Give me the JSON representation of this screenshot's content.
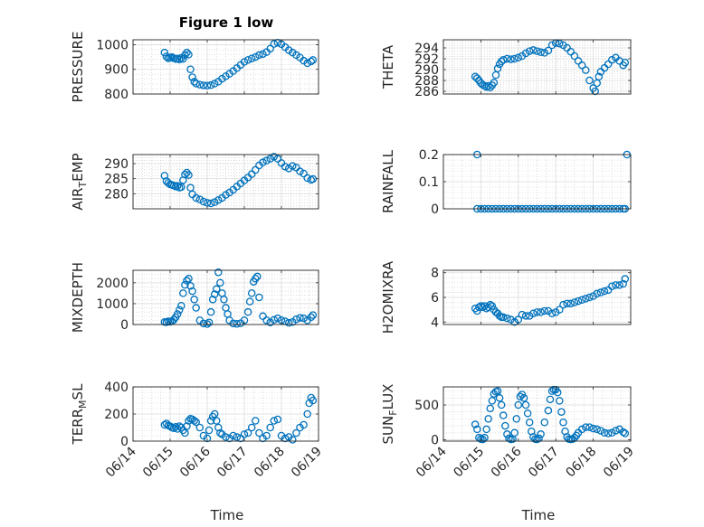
{
  "figure": {
    "title": "Figure 1 low",
    "xlabel": "Time",
    "x_ticks": [
      "06/14",
      "06/15",
      "06/16",
      "06/17",
      "06/18",
      "06/19"
    ],
    "marker_color": "#0072bd",
    "grid": "major and minor, dotted"
  },
  "chart_data": [
    {
      "type": "scatter",
      "ylabel": "PRESSURE",
      "xlim": [
        0,
        5
      ],
      "ylim": [
        800,
        1020
      ],
      "yticks": [
        800,
        900,
        1000
      ],
      "x": [
        0.85,
        0.9,
        0.95,
        1.0,
        1.05,
        1.1,
        1.15,
        1.2,
        1.25,
        1.3,
        1.35,
        1.4,
        1.45,
        1.5,
        1.55,
        1.6,
        1.65,
        1.7,
        1.8,
        1.9,
        2.0,
        2.1,
        2.2,
        2.3,
        2.4,
        2.5,
        2.6,
        2.7,
        2.8,
        2.9,
        3.0,
        3.1,
        3.2,
        3.3,
        3.4,
        3.5,
        3.6,
        3.7,
        3.8,
        3.9,
        4.0,
        4.1,
        4.2,
        4.3,
        4.4,
        4.5,
        4.6,
        4.7,
        4.8,
        4.85
      ],
      "y": [
        968,
        952,
        945,
        947,
        950,
        945,
        942,
        944,
        940,
        946,
        942,
        958,
        968,
        960,
        900,
        868,
        850,
        842,
        838,
        835,
        834,
        836,
        842,
        850,
        862,
        872,
        882,
        893,
        905,
        918,
        930,
        938,
        944,
        950,
        958,
        962,
        970,
        984,
        1003,
        1008,
        1002,
        990,
        978,
        968,
        958,
        948,
        935,
        925,
        932,
        938
      ]
    },
    {
      "type": "scatter",
      "ylabel": "THETA",
      "xlim": [
        0,
        5
      ],
      "ylim": [
        285.5,
        295.5
      ],
      "yticks": [
        286,
        288,
        290,
        292,
        294
      ],
      "x": [
        0.85,
        0.9,
        0.95,
        1.0,
        1.05,
        1.1,
        1.15,
        1.2,
        1.25,
        1.3,
        1.35,
        1.4,
        1.45,
        1.5,
        1.55,
        1.6,
        1.7,
        1.8,
        1.9,
        2.0,
        2.1,
        2.2,
        2.3,
        2.4,
        2.5,
        2.6,
        2.7,
        2.8,
        2.9,
        3.0,
        3.1,
        3.2,
        3.3,
        3.4,
        3.5,
        3.6,
        3.7,
        3.8,
        3.9,
        4.0,
        4.05,
        4.1,
        4.15,
        4.2,
        4.3,
        4.4,
        4.5,
        4.6,
        4.7,
        4.8,
        4.85
      ],
      "y": [
        288.7,
        288.4,
        288.0,
        287.5,
        287.2,
        287.0,
        286.8,
        287.0,
        286.7,
        287.1,
        287.6,
        289.0,
        290.2,
        291.0,
        291.5,
        291.8,
        292.0,
        291.9,
        292.0,
        292.2,
        292.5,
        293.0,
        293.4,
        293.6,
        293.4,
        293.2,
        293.1,
        293.5,
        294.5,
        294.9,
        294.8,
        294.5,
        294.0,
        293.3,
        292.5,
        291.6,
        290.8,
        289.9,
        288.0,
        286.6,
        286.0,
        287.5,
        288.7,
        289.6,
        290.3,
        291.0,
        291.8,
        292.2,
        291.6,
        290.8,
        291.3
      ]
    },
    {
      "type": "scatter",
      "ylabel": "AIR_TEMP",
      "xlim": [
        0,
        5
      ],
      "ylim": [
        275,
        293
      ],
      "yticks": [
        280,
        285,
        290
      ],
      "x": [
        0.85,
        0.9,
        0.95,
        1.0,
        1.05,
        1.1,
        1.15,
        1.2,
        1.25,
        1.3,
        1.35,
        1.4,
        1.45,
        1.5,
        1.55,
        1.6,
        1.7,
        1.8,
        1.9,
        2.0,
        2.1,
        2.2,
        2.3,
        2.4,
        2.5,
        2.6,
        2.7,
        2.8,
        2.9,
        3.0,
        3.1,
        3.2,
        3.3,
        3.4,
        3.5,
        3.6,
        3.7,
        3.8,
        3.9,
        4.0,
        4.1,
        4.2,
        4.3,
        4.4,
        4.5,
        4.6,
        4.7,
        4.8,
        4.85
      ],
      "y": [
        286.0,
        284.2,
        283.6,
        283.1,
        282.9,
        282.7,
        282.4,
        282.6,
        282.0,
        282.2,
        284.5,
        286.4,
        287.0,
        286.2,
        282.0,
        279.8,
        278.6,
        278.1,
        277.4,
        277.0,
        276.8,
        277.2,
        277.9,
        278.6,
        279.6,
        280.4,
        281.3,
        282.4,
        283.4,
        284.4,
        285.4,
        286.5,
        287.9,
        289.4,
        290.4,
        291.0,
        291.6,
        292.3,
        291.6,
        290.2,
        289.0,
        288.4,
        289.2,
        288.7,
        287.4,
        286.7,
        285.2,
        284.6,
        284.9
      ]
    },
    {
      "type": "scatter",
      "ylabel": "RAINFALL",
      "xlim": [
        0,
        5
      ],
      "ylim": [
        0,
        0.2
      ],
      "yticks": [
        0,
        0.1,
        0.2
      ],
      "x": [
        0.9,
        1.0,
        1.1,
        1.2,
        1.3,
        1.4,
        1.5,
        1.6,
        1.7,
        1.8,
        1.9,
        2.0,
        2.1,
        2.2,
        2.3,
        2.4,
        2.5,
        2.6,
        2.7,
        2.8,
        2.9,
        3.0,
        3.1,
        3.2,
        3.3,
        3.4,
        3.5,
        3.6,
        3.7,
        3.8,
        3.9,
        4.0,
        4.1,
        4.2,
        4.3,
        4.4,
        4.5,
        4.6,
        4.7,
        4.8,
        4.85,
        0.9,
        4.9
      ],
      "y": [
        0,
        0,
        0,
        0,
        0,
        0,
        0,
        0,
        0,
        0,
        0,
        0,
        0,
        0,
        0,
        0,
        0,
        0,
        0,
        0,
        0,
        0,
        0,
        0,
        0,
        0,
        0,
        0,
        0,
        0,
        0,
        0,
        0,
        0,
        0,
        0,
        0,
        0,
        0,
        0,
        0,
        0.2,
        0.2
      ]
    },
    {
      "type": "scatter",
      "ylabel": "MIXDEPTH",
      "xlim": [
        0,
        5
      ],
      "ylim": [
        0,
        2600
      ],
      "yticks": [
        0,
        1000,
        2000
      ],
      "x": [
        0.85,
        0.9,
        0.95,
        1.0,
        1.05,
        1.1,
        1.15,
        1.2,
        1.25,
        1.3,
        1.35,
        1.4,
        1.45,
        1.5,
        1.55,
        1.6,
        1.65,
        1.7,
        1.8,
        1.9,
        2.0,
        2.05,
        2.1,
        2.15,
        2.2,
        2.25,
        2.3,
        2.35,
        2.4,
        2.45,
        2.5,
        2.55,
        2.6,
        2.7,
        2.8,
        2.9,
        3.0,
        3.1,
        3.15,
        3.2,
        3.25,
        3.3,
        3.35,
        3.4,
        3.5,
        3.6,
        3.7,
        3.8,
        3.9,
        4.0,
        4.1,
        4.2,
        4.3,
        4.4,
        4.5,
        4.6,
        4.7,
        4.8,
        4.85
      ],
      "y": [
        120,
        110,
        150,
        130,
        160,
        230,
        350,
        500,
        700,
        900,
        1500,
        1900,
        2100,
        2200,
        1850,
        1600,
        1200,
        800,
        200,
        50,
        20,
        100,
        600,
        1200,
        1450,
        1700,
        2500,
        2000,
        1500,
        1200,
        800,
        500,
        200,
        50,
        30,
        60,
        200,
        600,
        1100,
        1500,
        2050,
        2200,
        2300,
        1300,
        400,
        200,
        100,
        220,
        300,
        200,
        150,
        80,
        120,
        250,
        320,
        300,
        200,
        350,
        450
      ]
    },
    {
      "type": "scatter",
      "ylabel": "H2OMIXRA",
      "xlim": [
        0,
        5
      ],
      "ylim": [
        3.8,
        8.2
      ],
      "yticks": [
        4,
        6,
        8
      ],
      "x": [
        0.85,
        0.9,
        0.95,
        1.0,
        1.05,
        1.1,
        1.15,
        1.2,
        1.25,
        1.3,
        1.35,
        1.4,
        1.45,
        1.5,
        1.55,
        1.6,
        1.7,
        1.8,
        1.9,
        2.0,
        2.1,
        2.2,
        2.3,
        2.4,
        2.5,
        2.6,
        2.7,
        2.8,
        2.9,
        3.0,
        3.1,
        3.2,
        3.3,
        3.4,
        3.5,
        3.6,
        3.7,
        3.8,
        3.9,
        4.0,
        4.1,
        4.2,
        4.3,
        4.4,
        4.5,
        4.6,
        4.7,
        4.8,
        4.85
      ],
      "y": [
        5.1,
        4.9,
        5.2,
        5.3,
        5.2,
        5.3,
        5.1,
        5.2,
        5.4,
        5.3,
        5.0,
        4.8,
        4.7,
        4.5,
        4.4,
        4.4,
        4.3,
        4.2,
        4.0,
        4.2,
        4.6,
        4.5,
        4.5,
        4.7,
        4.8,
        4.8,
        4.9,
        4.9,
        4.7,
        4.8,
        5.0,
        5.4,
        5.5,
        5.5,
        5.6,
        5.7,
        5.8,
        5.9,
        6.0,
        6.1,
        6.3,
        6.4,
        6.5,
        6.6,
        6.9,
        7.0,
        7.0,
        7.1,
        7.5
      ]
    },
    {
      "type": "scatter",
      "ylabel": "TERR_MSL",
      "xlim": [
        0,
        5
      ],
      "ylim": [
        0,
        400
      ],
      "yticks": [
        0,
        200,
        400
      ],
      "x": [
        0.85,
        0.9,
        0.95,
        1.0,
        1.05,
        1.1,
        1.15,
        1.2,
        1.25,
        1.3,
        1.35,
        1.4,
        1.45,
        1.5,
        1.55,
        1.6,
        1.65,
        1.7,
        1.8,
        1.9,
        2.0,
        2.05,
        2.1,
        2.15,
        2.2,
        2.25,
        2.3,
        2.35,
        2.4,
        2.5,
        2.6,
        2.7,
        2.8,
        2.9,
        3.0,
        3.1,
        3.2,
        3.3,
        3.4,
        3.5,
        3.6,
        3.7,
        3.8,
        3.9,
        4.0,
        4.1,
        4.2,
        4.3,
        4.4,
        4.5,
        4.6,
        4.7,
        4.75,
        4.8,
        4.85
      ],
      "y": [
        120,
        130,
        115,
        110,
        100,
        95,
        105,
        90,
        110,
        100,
        80,
        60,
        110,
        150,
        165,
        160,
        150,
        140,
        100,
        40,
        20,
        80,
        150,
        180,
        200,
        150,
        100,
        60,
        50,
        30,
        20,
        40,
        30,
        20,
        50,
        60,
        100,
        150,
        60,
        20,
        40,
        100,
        150,
        160,
        40,
        20,
        30,
        10,
        60,
        100,
        120,
        200,
        280,
        320,
        300
      ]
    },
    {
      "type": "scatter",
      "ylabel": "SUN_FLUX",
      "xlim": [
        0,
        5
      ],
      "ylim": [
        -20,
        760
      ],
      "yticks": [
        0,
        500
      ],
      "x": [
        0.85,
        0.9,
        0.95,
        1.0,
        1.05,
        1.1,
        1.15,
        1.2,
        1.25,
        1.3,
        1.35,
        1.4,
        1.45,
        1.5,
        1.55,
        1.6,
        1.65,
        1.7,
        1.75,
        1.8,
        1.85,
        1.9,
        1.95,
        2.0,
        2.05,
        2.1,
        2.15,
        2.2,
        2.25,
        2.3,
        2.35,
        2.4,
        2.45,
        2.5,
        2.55,
        2.6,
        2.7,
        2.8,
        2.85,
        2.9,
        2.95,
        3.0,
        3.05,
        3.1,
        3.15,
        3.2,
        3.25,
        3.3,
        3.35,
        3.4,
        3.45,
        3.5,
        3.55,
        3.6,
        3.7,
        3.8,
        3.9,
        4.0,
        4.1,
        4.2,
        4.3,
        4.4,
        4.5,
        4.6,
        4.7,
        4.8,
        4.85
      ],
      "y": [
        220,
        150,
        30,
        10,
        5,
        30,
        150,
        300,
        450,
        560,
        660,
        690,
        700,
        600,
        500,
        350,
        200,
        80,
        20,
        5,
        10,
        100,
        300,
        500,
        620,
        650,
        600,
        500,
        380,
        250,
        120,
        40,
        10,
        5,
        20,
        80,
        250,
        420,
        580,
        700,
        720,
        720,
        680,
        560,
        400,
        250,
        120,
        40,
        10,
        5,
        10,
        30,
        60,
        100,
        150,
        180,
        180,
        160,
        150,
        130,
        100,
        90,
        100,
        130,
        150,
        110,
        90
      ]
    }
  ]
}
